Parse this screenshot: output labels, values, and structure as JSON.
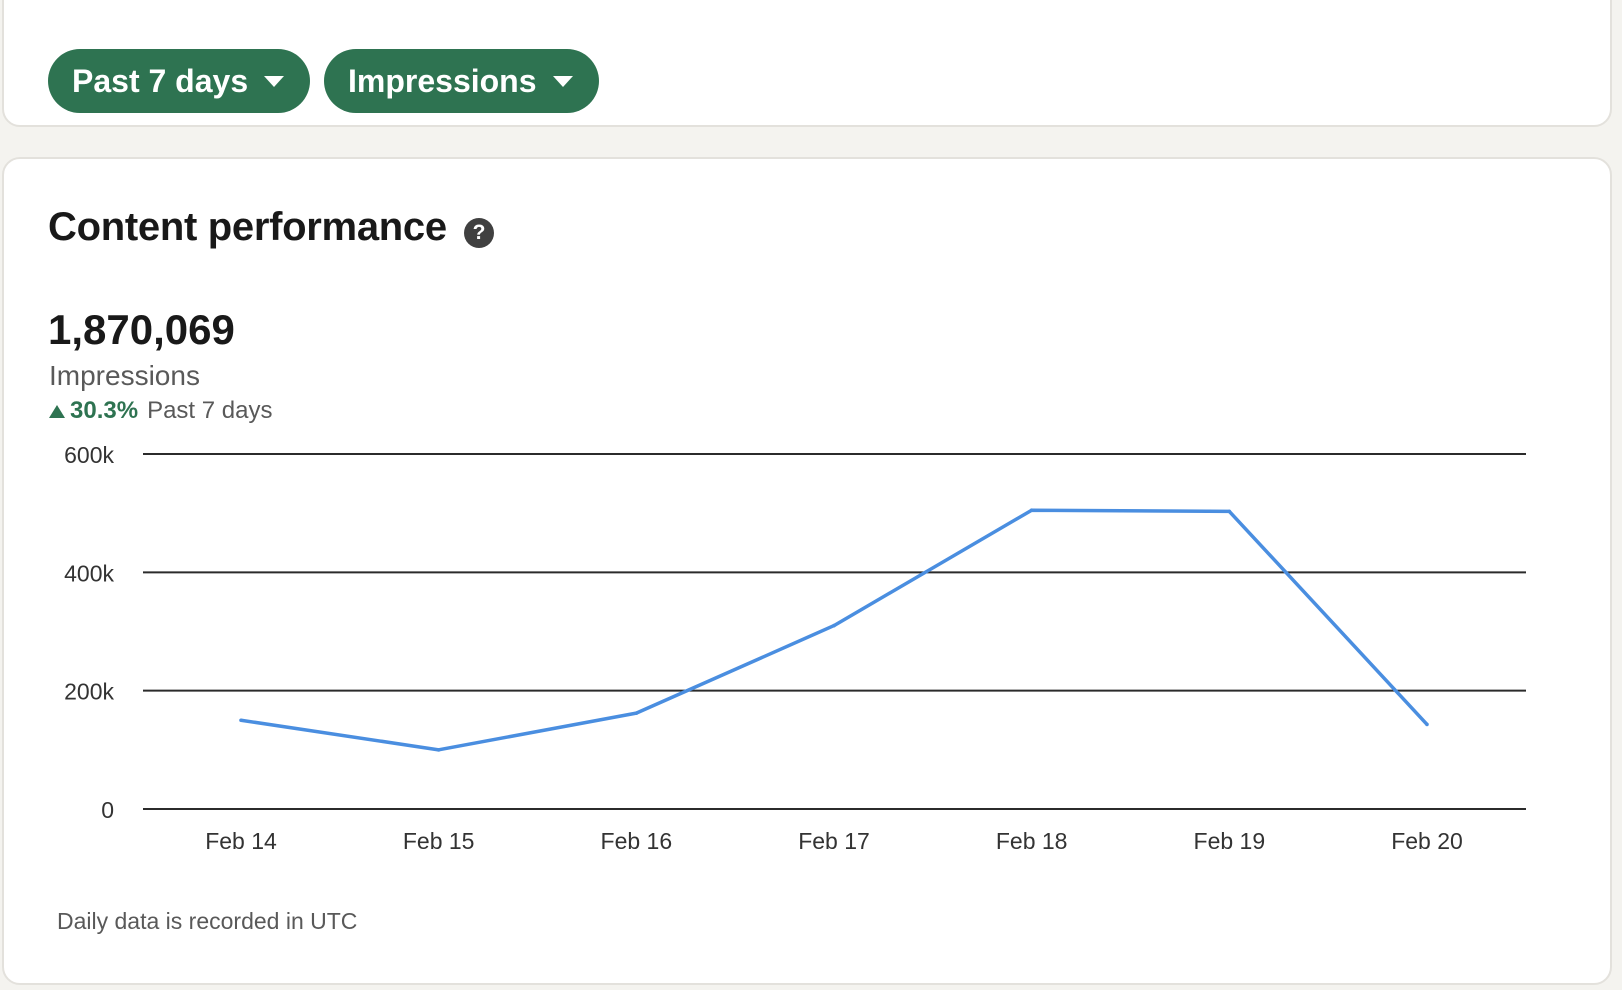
{
  "filters": {
    "range_label": "Past 7 days",
    "metric_label": "Impressions"
  },
  "card": {
    "title": "Content performance",
    "help_glyph": "?",
    "total": "1,870,069",
    "metric": "Impressions",
    "change_pct": "30.3%",
    "change_period": "Past 7 days",
    "footnote": "Daily data is recorded in UTC"
  },
  "colors": {
    "accent_green": "#2e7351",
    "line_blue": "#4a8ee0"
  },
  "chart_data": {
    "type": "line",
    "categories": [
      "Feb 14",
      "Feb 15",
      "Feb 16",
      "Feb 17",
      "Feb 18",
      "Feb 19",
      "Feb 20"
    ],
    "series": [
      {
        "values": [
          150000,
          100000,
          162000,
          310000,
          505000,
          503000,
          143000
        ]
      }
    ],
    "ylim": [
      0,
      600000
    ],
    "yticks": [
      0,
      200000,
      400000,
      600000
    ],
    "ytick_labels": [
      "0",
      "200k",
      "400k",
      "600k"
    ],
    "grid": true,
    "legend": "none"
  }
}
